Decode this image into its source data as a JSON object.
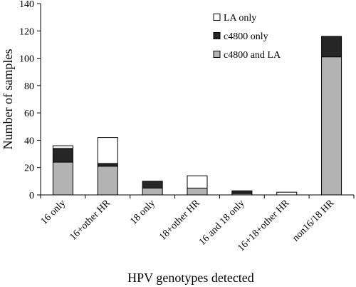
{
  "chart_data": {
    "type": "bar",
    "stacked": true,
    "xlabel": "HPV genotypes detected",
    "ylabel": "Number of samples",
    "ylim": [
      0,
      140
    ],
    "yticks": [
      0,
      20,
      40,
      60,
      80,
      100,
      120,
      140
    ],
    "grid": false,
    "legend_position": "top-right",
    "categories": [
      "16 only",
      "16+other HR",
      "18 only",
      "18+other HR",
      "16 and 18 only",
      "16+18+other HR",
      "non16/18 HR"
    ],
    "series": [
      {
        "name": "c4800 and LA",
        "color": "#b3b3b3",
        "values": [
          24,
          21,
          5,
          5,
          1,
          0,
          101
        ]
      },
      {
        "name": "c4800 only",
        "color": "#262626",
        "values": [
          10,
          2,
          5,
          0,
          2,
          0,
          15
        ]
      },
      {
        "name": "LA only",
        "color": "#ffffff",
        "values": [
          2,
          19,
          0,
          9,
          0,
          2,
          0
        ]
      }
    ],
    "legend_order": [
      2,
      1,
      0
    ]
  }
}
